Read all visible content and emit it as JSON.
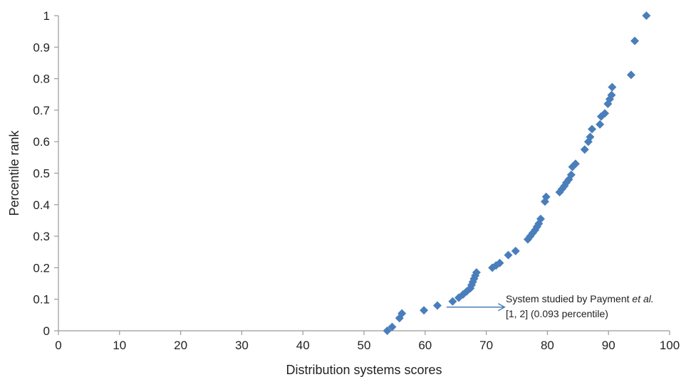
{
  "chart_data": {
    "type": "scatter",
    "title": "",
    "xlabel": "Distribution systems scores",
    "ylabel": "Percentile rank",
    "xlim": [
      0,
      100
    ],
    "ylim": [
      0,
      1
    ],
    "x_ticks": [
      0,
      10,
      20,
      30,
      40,
      50,
      60,
      70,
      80,
      90,
      100
    ],
    "y_ticks": [
      0,
      0.1,
      0.2,
      0.3,
      0.4,
      0.5,
      0.6,
      0.7,
      0.8,
      0.9,
      1
    ],
    "grid": false,
    "legend": "none",
    "marker": "diamond",
    "color": "#4a7ebb",
    "series": [
      {
        "points": [
          [
            53.8,
            0.0
          ],
          [
            54.6,
            0.012
          ],
          [
            55.8,
            0.04
          ],
          [
            56.2,
            0.055
          ],
          [
            59.8,
            0.065
          ],
          [
            62.0,
            0.08
          ],
          [
            64.5,
            0.093
          ],
          [
            65.5,
            0.105
          ],
          [
            66.2,
            0.115
          ],
          [
            66.8,
            0.125
          ],
          [
            67.4,
            0.135
          ],
          [
            67.6,
            0.145
          ],
          [
            67.8,
            0.155
          ],
          [
            68.0,
            0.165
          ],
          [
            68.2,
            0.175
          ],
          [
            68.4,
            0.185
          ],
          [
            71.0,
            0.2
          ],
          [
            71.6,
            0.207
          ],
          [
            72.2,
            0.215
          ],
          [
            73.6,
            0.24
          ],
          [
            74.8,
            0.253
          ],
          [
            76.8,
            0.29
          ],
          [
            77.2,
            0.3
          ],
          [
            77.6,
            0.31
          ],
          [
            78.0,
            0.32
          ],
          [
            78.3,
            0.33
          ],
          [
            78.6,
            0.34
          ],
          [
            78.9,
            0.355
          ],
          [
            79.6,
            0.41
          ],
          [
            79.8,
            0.425
          ],
          [
            82.0,
            0.44
          ],
          [
            82.4,
            0.45
          ],
          [
            82.8,
            0.46
          ],
          [
            83.1,
            0.47
          ],
          [
            83.5,
            0.48
          ],
          [
            83.9,
            0.495
          ],
          [
            84.1,
            0.52
          ],
          [
            84.6,
            0.53
          ],
          [
            86.1,
            0.575
          ],
          [
            86.7,
            0.6
          ],
          [
            87.0,
            0.615
          ],
          [
            87.3,
            0.64
          ],
          [
            88.6,
            0.655
          ],
          [
            88.8,
            0.68
          ],
          [
            89.4,
            0.69
          ],
          [
            89.9,
            0.72
          ],
          [
            90.2,
            0.735
          ],
          [
            90.5,
            0.748
          ],
          [
            90.6,
            0.773
          ],
          [
            93.7,
            0.812
          ],
          [
            94.3,
            0.92
          ],
          [
            96.2,
            1.0
          ]
        ]
      }
    ],
    "annotation": {
      "text_before": "System studied by Payment ",
      "text_italic": "et al.",
      "text_line2": "[1, 2] (0.093 percentile)",
      "arrow_from": [
        63.5,
        0.075
      ],
      "arrow_to": [
        73,
        0.075
      ]
    }
  }
}
